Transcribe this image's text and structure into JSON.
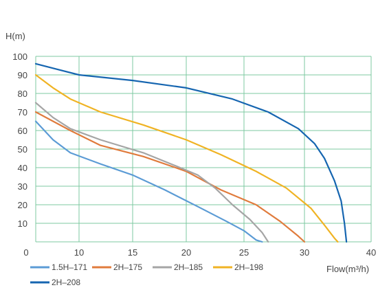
{
  "chart_data": {
    "type": "line",
    "title": "",
    "xlabel": "Flow(m³/h)",
    "ylabel": "H(m)",
    "xlim": [
      0,
      40
    ],
    "ylim": [
      0,
      100
    ],
    "xticks": [
      "0",
      "10",
      "15",
      "20",
      "25",
      "30",
      "40"
    ],
    "yticks": [
      "10",
      "20",
      "30",
      "40",
      "50",
      "60",
      "70",
      "80",
      "90",
      "100"
    ],
    "grid": true,
    "legend_position": "bottom",
    "series": [
      {
        "name": "1.5H–171",
        "color": "#5b9bd5",
        "points": [
          [
            0,
            65
          ],
          [
            4,
            55
          ],
          [
            8,
            48
          ],
          [
            12,
            42
          ],
          [
            15,
            36
          ],
          [
            18,
            28
          ],
          [
            21,
            19
          ],
          [
            23.5,
            11
          ],
          [
            25,
            6
          ],
          [
            26,
            1
          ],
          [
            26.5,
            0
          ]
        ]
      },
      {
        "name": "2H–175",
        "color": "#e07b3c",
        "points": [
          [
            0,
            70
          ],
          [
            4,
            65
          ],
          [
            8,
            60
          ],
          [
            12,
            52
          ],
          [
            16,
            46
          ],
          [
            20,
            38
          ],
          [
            23,
            28
          ],
          [
            26,
            20
          ],
          [
            28,
            11
          ],
          [
            29.5,
            3
          ],
          [
            30,
            0
          ]
        ]
      },
      {
        "name": "2H–185",
        "color": "#a5a5a5",
        "points": [
          [
            0,
            75
          ],
          [
            4,
            67
          ],
          [
            8,
            61
          ],
          [
            12,
            55
          ],
          [
            16,
            48
          ],
          [
            19,
            41
          ],
          [
            21,
            36
          ],
          [
            22.5,
            29
          ],
          [
            24,
            20
          ],
          [
            25.5,
            12
          ],
          [
            26.5,
            5
          ],
          [
            27,
            0
          ]
        ]
      },
      {
        "name": "2H–198",
        "color": "#f0b323",
        "points": [
          [
            0,
            90
          ],
          [
            4,
            83
          ],
          [
            8,
            77
          ],
          [
            12,
            70
          ],
          [
            16,
            63
          ],
          [
            20,
            55
          ],
          [
            23,
            47
          ],
          [
            26,
            38
          ],
          [
            28.5,
            29
          ],
          [
            31,
            18
          ],
          [
            33,
            9
          ],
          [
            34.5,
            2
          ],
          [
            35,
            0
          ]
        ]
      },
      {
        "name": "2H–208",
        "color": "#1565b0",
        "points": [
          [
            0,
            96
          ],
          [
            5,
            93
          ],
          [
            10,
            90
          ],
          [
            15,
            87
          ],
          [
            20,
            83
          ],
          [
            24,
            77
          ],
          [
            27,
            70
          ],
          [
            29.5,
            61
          ],
          [
            31.5,
            53
          ],
          [
            33,
            45
          ],
          [
            34.5,
            33
          ],
          [
            35.5,
            22
          ],
          [
            36,
            10
          ],
          [
            36.3,
            0
          ]
        ]
      }
    ]
  }
}
